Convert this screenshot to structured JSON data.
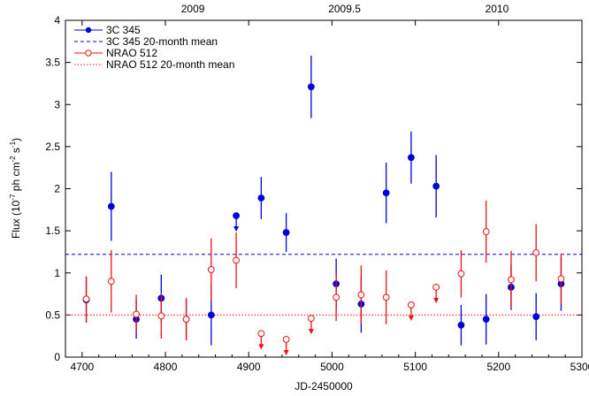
{
  "chart_data": {
    "type": "scatter",
    "title": "",
    "xlabel": "JD-2450000",
    "ylabel": "Flux (10^-7 ph cm^-2 s^-1)",
    "ylabel_parts": {
      "pre": "Flux (10",
      "e1": "-7",
      "mid1": " ph cm",
      "e2": "-2",
      "mid2": " s",
      "e3": "-1",
      "post": ")"
    },
    "xlim": [
      4680,
      5300
    ],
    "ylim": [
      0,
      4
    ],
    "x_ticks": [
      4700,
      4800,
      4900,
      5000,
      5100,
      5200,
      5300
    ],
    "y_ticks": [
      0,
      0.5,
      1,
      1.5,
      2,
      2.5,
      3,
      3.5,
      4
    ],
    "x_tick_labels": [
      "4700",
      "4800",
      "4900",
      "5000",
      "5100",
      "5200",
      "5300"
    ],
    "y_tick_labels": [
      "0",
      "0.5",
      "1",
      "1.5",
      "2",
      "2.5",
      "3",
      "3.5",
      "4"
    ],
    "top_axis_labels": [
      {
        "label": "2009",
        "x": 4833
      },
      {
        "label": "2009.5",
        "x": 5015
      },
      {
        "label": "2010",
        "x": 5198
      }
    ],
    "grid": false,
    "legend_position": "top-left",
    "legend": [
      {
        "label": "3C 345",
        "kind": "points",
        "color": "#0000dd"
      },
      {
        "label": "3C 345 20-month mean",
        "kind": "dashed",
        "color": "#0000dd"
      },
      {
        "label": "NRAO 512",
        "kind": "open-points",
        "color": "#ee1111"
      },
      {
        "label": "NRAO 512 20-month mean",
        "kind": "dotted",
        "color": "#ee1111"
      }
    ],
    "series": [
      {
        "name": "3C 345",
        "color": "#0000dd",
        "marker": "filled-circle",
        "points": [
          {
            "x": 4705,
            "y": 0.68,
            "err": 0.27
          },
          {
            "x": 4735,
            "y": 1.79,
            "err": 0.41
          },
          {
            "x": 4765,
            "y": 0.45,
            "err": 0.23
          },
          {
            "x": 4795,
            "y": 0.7,
            "err": 0.28
          },
          {
            "x": 4825,
            "y": 0.45,
            "err": 0.25
          },
          {
            "x": 4855,
            "y": 0.5,
            "err": 0.36
          },
          {
            "x": 4885,
            "y": 1.68,
            "upper_limit": true
          },
          {
            "x": 4915,
            "y": 1.89,
            "err": 0.25
          },
          {
            "x": 4945,
            "y": 1.48,
            "err": 0.23
          },
          {
            "x": 4975,
            "y": 3.21,
            "err": 0.37
          },
          {
            "x": 5005,
            "y": 0.87,
            "err": 0.3
          },
          {
            "x": 5035,
            "y": 0.63,
            "err": 0.34
          },
          {
            "x": 5065,
            "y": 1.95,
            "err": 0.36
          },
          {
            "x": 5095,
            "y": 2.37,
            "err": 0.31
          },
          {
            "x": 5125,
            "y": 2.03,
            "err": 0.37
          },
          {
            "x": 5155,
            "y": 0.38,
            "err": 0.24
          },
          {
            "x": 5185,
            "y": 0.45,
            "err": 0.3
          },
          {
            "x": 5215,
            "y": 0.83,
            "err": 0.27
          },
          {
            "x": 5245,
            "y": 0.48,
            "err": 0.28
          },
          {
            "x": 5275,
            "y": 0.87,
            "err": 0.32
          }
        ]
      },
      {
        "name": "NRAO 512",
        "color": "#ee1111",
        "marker": "open-circle",
        "points": [
          {
            "x": 4705,
            "y": 0.69,
            "err": 0.27
          },
          {
            "x": 4735,
            "y": 0.9,
            "err": 0.37
          },
          {
            "x": 4765,
            "y": 0.51,
            "err": 0.23
          },
          {
            "x": 4795,
            "y": 0.49,
            "err": 0.27
          },
          {
            "x": 4825,
            "y": 0.45,
            "err": 0.25
          },
          {
            "x": 4855,
            "y": 1.04,
            "err": 0.37
          },
          {
            "x": 4885,
            "y": 1.15,
            "err": 0.33
          },
          {
            "x": 4915,
            "y": 0.28,
            "upper_limit": true
          },
          {
            "x": 4945,
            "y": 0.21,
            "upper_limit": true
          },
          {
            "x": 4975,
            "y": 0.46,
            "upper_limit": true
          },
          {
            "x": 5005,
            "y": 0.71,
            "err": 0.28
          },
          {
            "x": 5035,
            "y": 0.74,
            "err": 0.35
          },
          {
            "x": 5065,
            "y": 0.71,
            "err": 0.32
          },
          {
            "x": 5095,
            "y": 0.62,
            "upper_limit": true
          },
          {
            "x": 5125,
            "y": 0.83,
            "upper_limit": true
          },
          {
            "x": 5155,
            "y": 0.99,
            "err": 0.28
          },
          {
            "x": 5185,
            "y": 1.49,
            "err": 0.37
          },
          {
            "x": 5215,
            "y": 0.92,
            "err": 0.34
          },
          {
            "x": 5245,
            "y": 1.24,
            "err": 0.34
          },
          {
            "x": 5275,
            "y": 0.93,
            "err": 0.3
          }
        ]
      }
    ],
    "means": [
      {
        "name": "3C 345 20-month mean",
        "y": 1.22,
        "color": "#0000dd",
        "style": "dashed"
      },
      {
        "name": "NRAO 512 20-month mean",
        "y": 0.5,
        "color": "#ee1111",
        "style": "dotted"
      }
    ]
  }
}
